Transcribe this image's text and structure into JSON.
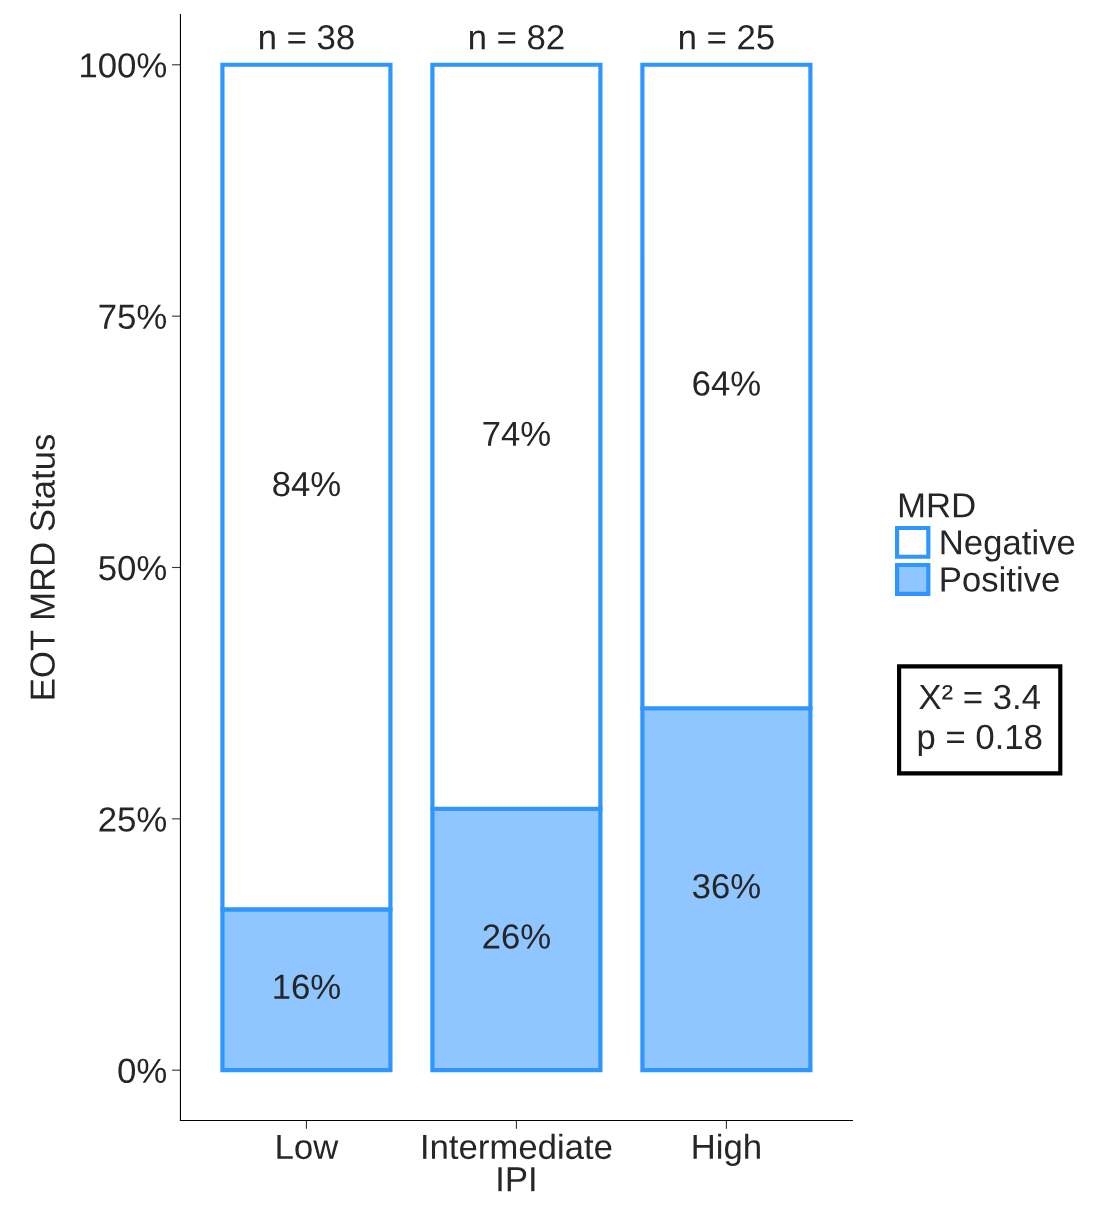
{
  "chart_data": {
    "type": "bar",
    "stacked": true,
    "categories": [
      "Low",
      "Intermediate",
      "High"
    ],
    "series": [
      {
        "name": "Positive",
        "color": "#90c6ff",
        "values": [
          16,
          26,
          36
        ],
        "value_labels": [
          "16%",
          "26%",
          "36%"
        ]
      },
      {
        "name": "Negative",
        "color": "#ffffff",
        "values": [
          84,
          74,
          64
        ],
        "value_labels": [
          "84%",
          "74%",
          "64%"
        ]
      }
    ],
    "xlabel": "IPI",
    "ylabel": "EOT MRD Status",
    "legend_title": "MRD",
    "legend": "right",
    "ylim": [
      -5,
      105
    ],
    "yticks": [
      {
        "value": 0,
        "label": "0%"
      },
      {
        "value": 25,
        "label": "25%"
      },
      {
        "value": 50,
        "label": "50%"
      },
      {
        "value": 75,
        "label": "75%"
      },
      {
        "value": 100,
        "label": "100%"
      }
    ],
    "grid": false,
    "annotations": [
      {
        "text": "n = 38",
        "x": "Low",
        "y": 100
      },
      {
        "text": "n = 82",
        "x": "Intermediate",
        "y": 100
      },
      {
        "text": "n = 25",
        "x": "High",
        "y": 100
      },
      "X² = 3.4\np = 0.18"
    ]
  }
}
